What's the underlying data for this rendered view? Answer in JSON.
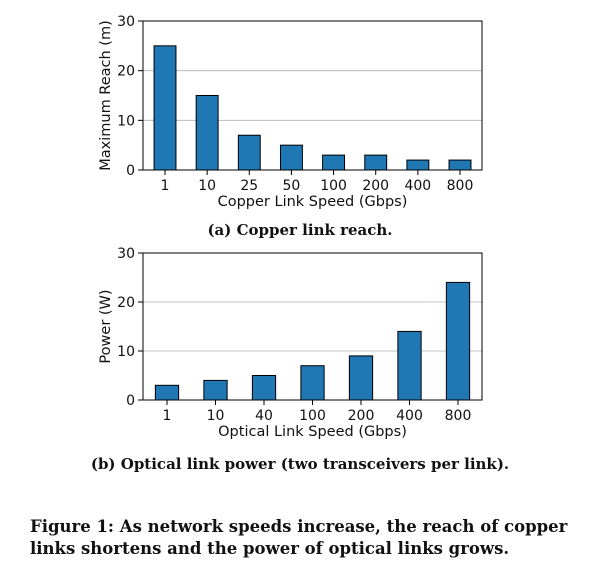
{
  "chart_data": [
    {
      "type": "bar",
      "categories": [
        "1",
        "10",
        "25",
        "50",
        "100",
        "200",
        "400",
        "800"
      ],
      "values": [
        25,
        15,
        7,
        5,
        3,
        3,
        2,
        2
      ],
      "xlabel": "Copper Link Speed (Gbps)",
      "ylabel": "Maximum Reach (m)",
      "ylim": [
        0,
        30
      ],
      "yticks": [
        0,
        10,
        20,
        30
      ],
      "color": "#1f77b4",
      "caption": "(a) Copper link reach."
    },
    {
      "type": "bar",
      "categories": [
        "1",
        "10",
        "40",
        "100",
        "200",
        "400",
        "800"
      ],
      "values": [
        3,
        4,
        5,
        7,
        9,
        14,
        24
      ],
      "xlabel": "Optical Link Speed (Gbps)",
      "ylabel": "Power (W)",
      "ylim": [
        0,
        30
      ],
      "yticks": [
        0,
        10,
        20,
        30
      ],
      "color": "#1f77b4",
      "caption": "(b) Optical link power (two transceivers per link)."
    }
  ],
  "figure_caption": "Figure 1: As network speeds increase, the reach of copper links shortens and the power of optical links grows."
}
